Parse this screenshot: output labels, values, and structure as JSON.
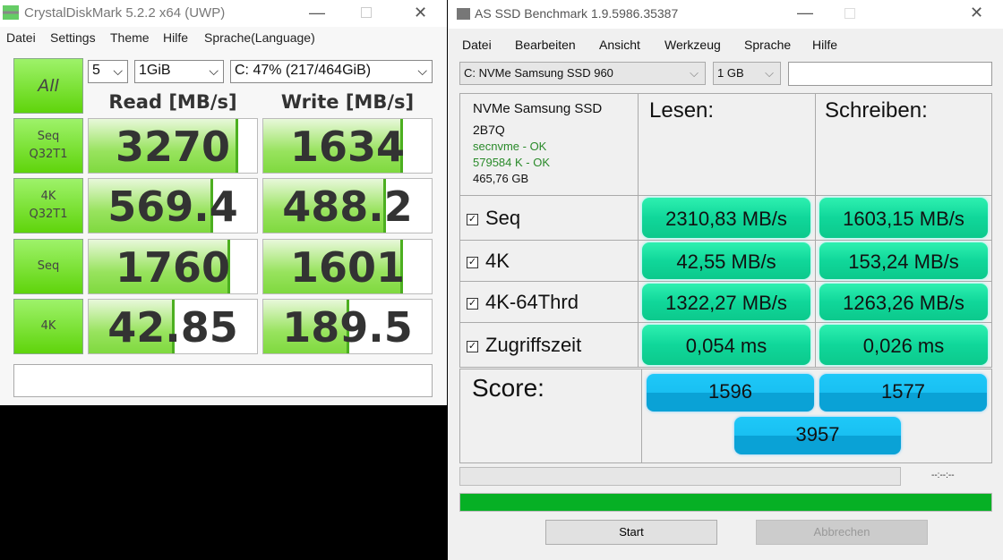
{
  "cdm": {
    "title": "CrystalDiskMark 5.2.2 x64 (UWP)",
    "menu": [
      "Datei",
      "Settings",
      "Theme",
      "Hilfe",
      "Sprache(Language)"
    ],
    "all_label": "All",
    "count": "5",
    "size": "1GiB",
    "drive": "C: 47% (217/464GiB)",
    "read_header": "Read [MB/s]",
    "write_header": "Write [MB/s]",
    "rows": [
      {
        "label1": "Seq",
        "label2": "Q32T1",
        "read": "3270",
        "write": "1634",
        "read_fill": 0.89,
        "write_fill": 0.83
      },
      {
        "label1": "4K",
        "label2": "Q32T1",
        "read": "569.4",
        "write": "488.2",
        "read_fill": 0.74,
        "write_fill": 0.73
      },
      {
        "label1": "Seq",
        "label2": "",
        "read": "1760",
        "write": "1601",
        "read_fill": 0.84,
        "write_fill": 0.83
      },
      {
        "label1": "4K",
        "label2": "",
        "read": "42.85",
        "write": "189.5",
        "read_fill": 0.51,
        "write_fill": 0.51
      }
    ],
    "comment": ""
  },
  "asd": {
    "title": "AS SSD Benchmark 1.9.5986.35387",
    "menu": [
      "Datei",
      "Bearbeiten",
      "Ansicht",
      "Werkzeug",
      "Sprache",
      "Hilfe"
    ],
    "drive": "C: NVMe Samsung SSD 960",
    "size": "1 GB",
    "textbox": "",
    "info": {
      "name": "NVMe Samsung SSD",
      "fw": "2B7Q",
      "driver": "secnvme - OK",
      "align": "579584 K - OK",
      "capacity": "465,76 GB"
    },
    "read_header": "Lesen:",
    "write_header": "Schreiben:",
    "rows": [
      {
        "label": "Seq",
        "read": "2310,83 MB/s",
        "write": "1603,15 MB/s"
      },
      {
        "label": "4K",
        "read": "42,55 MB/s",
        "write": "153,24 MB/s"
      },
      {
        "label": "4K-64Thrd",
        "read": "1322,27 MB/s",
        "write": "1263,26 MB/s"
      },
      {
        "label": "Zugriffszeit",
        "read": "0,054 ms",
        "write": "0,026 ms"
      }
    ],
    "score_label": "Score:",
    "score_read": "1596",
    "score_write": "1577",
    "score_total": "3957",
    "time": "--:--:--",
    "progress": 1.0,
    "start": "Start",
    "abort": "Abbrechen",
    "colors": {
      "progress": "#06b025",
      "result": "#10d79a",
      "score": "#19c0f2"
    }
  }
}
